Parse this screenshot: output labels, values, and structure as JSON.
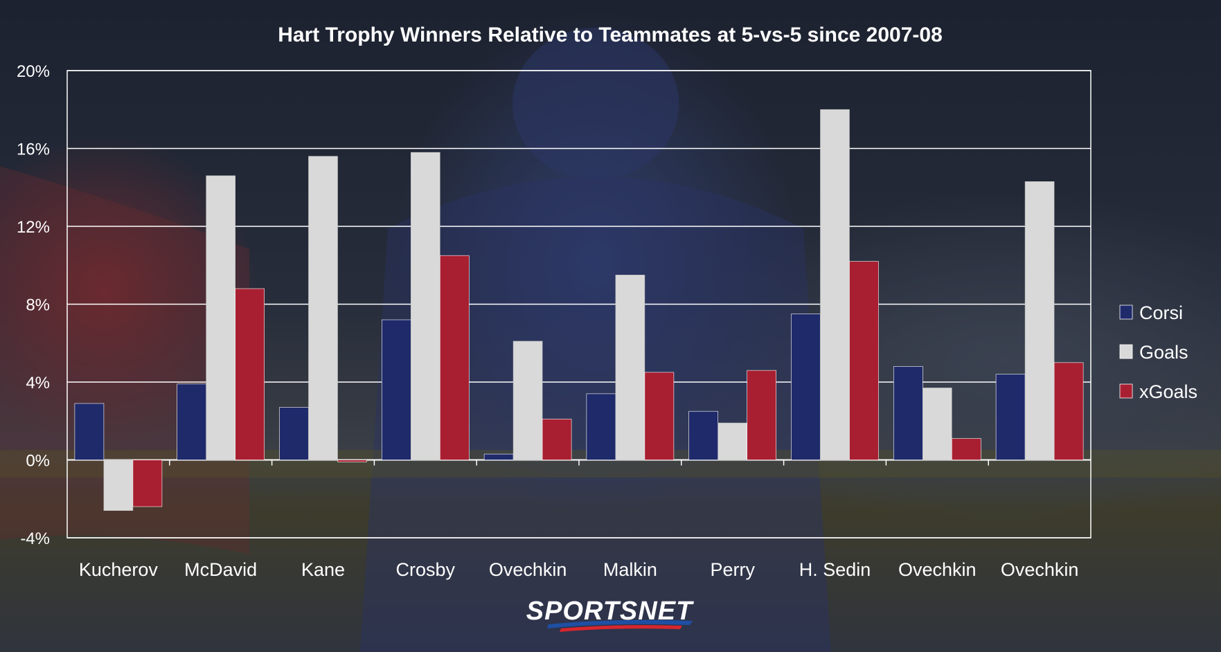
{
  "chart_data": {
    "type": "bar",
    "title": "Hart Trophy Winners Relative to Teammates at 5-vs-5 since 2007-08",
    "xlabel": "",
    "ylabel": "",
    "categories": [
      "Kucherov",
      "McDavid",
      "Kane",
      "Crosby",
      "Ovechkin",
      "Malkin",
      "Perry",
      "H. Sedin",
      "Ovechkin",
      "Ovechkin"
    ],
    "series": [
      {
        "name": "Corsi",
        "color": "#1f2a6b",
        "values": [
          2.9,
          3.9,
          2.7,
          7.2,
          0.3,
          3.4,
          2.5,
          7.5,
          4.8,
          4.4
        ]
      },
      {
        "name": "Goals",
        "color": "#d9d9d9",
        "values": [
          -2.6,
          14.6,
          15.6,
          15.8,
          6.1,
          9.5,
          1.9,
          18.0,
          3.7,
          14.3
        ]
      },
      {
        "name": "xGoals",
        "color": "#a81f31",
        "values": [
          -2.4,
          8.8,
          -0.1,
          10.5,
          2.1,
          4.5,
          4.6,
          10.2,
          1.1,
          5.0
        ]
      }
    ],
    "ylim": [
      -4,
      20
    ],
    "yticks": [
      -4,
      0,
      4,
      8,
      12,
      16,
      20
    ],
    "ytick_labels": [
      "-4%",
      "0%",
      "4%",
      "8%",
      "12%",
      "16%",
      "20%"
    ],
    "grid": true,
    "legend_position": "right"
  },
  "logo": {
    "text": "SPORTSNET",
    "colors": [
      "#ffffff",
      "#1e4fa3",
      "#d7262e"
    ]
  }
}
